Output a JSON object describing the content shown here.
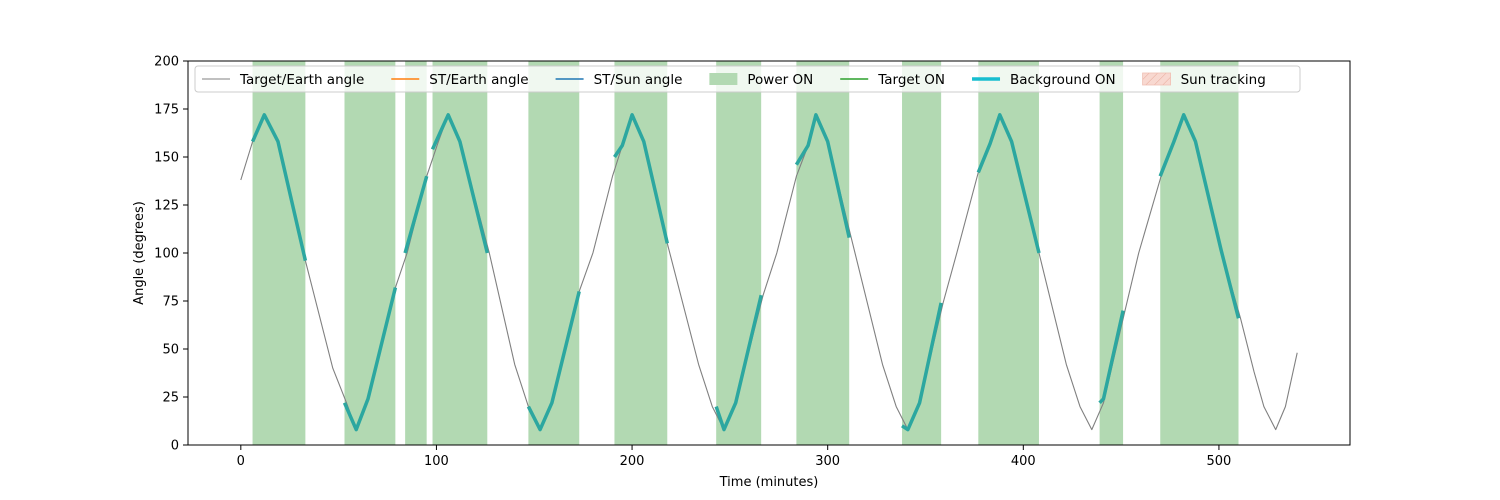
{
  "chart_data": {
    "type": "line",
    "title": "",
    "xlabel": "Time (minutes)",
    "ylabel": "Angle (degrees)",
    "xlim": [
      -27,
      567
    ],
    "ylim": [
      0,
      200
    ],
    "xticks": [
      0,
      100,
      200,
      300,
      400,
      500
    ],
    "yticks": [
      0,
      25,
      50,
      75,
      100,
      125,
      150,
      175,
      200
    ],
    "grid": false,
    "legend_position": "top",
    "series": [
      {
        "name": "Target/Earth angle",
        "color": "#808080",
        "style": "thin-line",
        "points": [
          [
            0,
            138
          ],
          [
            6,
            158
          ],
          [
            12,
            172
          ],
          [
            19,
            158
          ],
          [
            33,
            96
          ],
          [
            47,
            40
          ],
          [
            54,
            22
          ],
          [
            59,
            8
          ],
          [
            65,
            24
          ],
          [
            79,
            82
          ],
          [
            85,
            100
          ],
          [
            95,
            140
          ],
          [
            101,
            158
          ],
          [
            106,
            172
          ],
          [
            112,
            158
          ],
          [
            127,
            100
          ],
          [
            140,
            42
          ],
          [
            147,
            20
          ],
          [
            153,
            8
          ],
          [
            159,
            22
          ],
          [
            173,
            80
          ],
          [
            180,
            100
          ],
          [
            190,
            140
          ],
          [
            195,
            156
          ],
          [
            200,
            172
          ],
          [
            206,
            158
          ],
          [
            218,
            105
          ],
          [
            234,
            42
          ],
          [
            241,
            20
          ],
          [
            247,
            8
          ],
          [
            253,
            22
          ],
          [
            267,
            78
          ],
          [
            274,
            100
          ],
          [
            284,
            140
          ],
          [
            290,
            156
          ],
          [
            294,
            172
          ],
          [
            300,
            158
          ],
          [
            312,
            108
          ],
          [
            328,
            42
          ],
          [
            335,
            20
          ],
          [
            341,
            8
          ],
          [
            347,
            22
          ],
          [
            359,
            74
          ],
          [
            366,
            100
          ],
          [
            377,
            142
          ],
          [
            383,
            157
          ],
          [
            388,
            172
          ],
          [
            394,
            158
          ],
          [
            408,
            100
          ],
          [
            422,
            42
          ],
          [
            429,
            20
          ],
          [
            435,
            8
          ],
          [
            441,
            22
          ],
          [
            452,
            70
          ],
          [
            459,
            100
          ],
          [
            471,
            142
          ],
          [
            477,
            158
          ],
          [
            482,
            172
          ],
          [
            488,
            158
          ],
          [
            501,
            102
          ],
          [
            511,
            66
          ],
          [
            518,
            38
          ],
          [
            523,
            20
          ],
          [
            529,
            8
          ],
          [
            534,
            20
          ],
          [
            540,
            48
          ]
        ]
      },
      {
        "name": "ST/Earth angle",
        "color": "#ff7f0e",
        "style": "line",
        "points": []
      },
      {
        "name": "ST/Sun angle",
        "color": "#1f77b4",
        "style": "line",
        "points": []
      },
      {
        "name": "Power ON",
        "color": "#b2d9b2",
        "style": "span",
        "intervals": [
          [
            6,
            33
          ],
          [
            53,
            79
          ],
          [
            84,
            95
          ],
          [
            98,
            126
          ],
          [
            147,
            173
          ],
          [
            191,
            218
          ],
          [
            243,
            266
          ],
          [
            284,
            311
          ],
          [
            338,
            358
          ],
          [
            377,
            408
          ],
          [
            439,
            451
          ],
          [
            470,
            510
          ]
        ]
      },
      {
        "name": "Target ON",
        "color": "#2ca02c",
        "style": "line",
        "points": []
      },
      {
        "name": "Background ON",
        "color": "#2ca7a0",
        "legend_color": "#17becf",
        "style": "thick-line",
        "segments": [
          [
            [
              6,
              158
            ],
            [
              12,
              172
            ],
            [
              19,
              158
            ],
            [
              33,
              96
            ]
          ],
          [
            [
              53,
              22
            ],
            [
              59,
              8
            ],
            [
              65,
              24
            ],
            [
              79,
              82
            ]
          ],
          [
            [
              84,
              100
            ],
            [
              95,
              140
            ]
          ],
          [
            [
              98,
              154
            ],
            [
              106,
              172
            ],
            [
              112,
              158
            ],
            [
              126,
              100
            ]
          ],
          [
            [
              147,
              20
            ],
            [
              153,
              8
            ],
            [
              159,
              22
            ],
            [
              173,
              80
            ]
          ],
          [
            [
              191,
              150
            ],
            [
              195,
              156
            ],
            [
              200,
              172
            ],
            [
              206,
              158
            ],
            [
              218,
              105
            ]
          ],
          [
            [
              243,
              20
            ],
            [
              247,
              8
            ],
            [
              253,
              22
            ],
            [
              266,
              78
            ]
          ],
          [
            [
              284,
              146
            ],
            [
              290,
              156
            ],
            [
              294,
              172
            ],
            [
              300,
              158
            ],
            [
              311,
              108
            ]
          ],
          [
            [
              338,
              10
            ],
            [
              341,
              8
            ],
            [
              347,
              22
            ],
            [
              358,
              74
            ]
          ],
          [
            [
              377,
              142
            ],
            [
              383,
              157
            ],
            [
              388,
              172
            ],
            [
              394,
              158
            ],
            [
              408,
              100
            ]
          ],
          [
            [
              439,
              22
            ],
            [
              441,
              24
            ],
            [
              451,
              70
            ]
          ],
          [
            [
              470,
              140
            ],
            [
              477,
              158
            ],
            [
              482,
              172
            ],
            [
              488,
              158
            ],
            [
              501,
              102
            ],
            [
              510,
              66
            ]
          ]
        ]
      },
      {
        "name": "Sun tracking",
        "color": "#f8d8d0",
        "style": "hatched-span",
        "intervals": []
      }
    ]
  }
}
